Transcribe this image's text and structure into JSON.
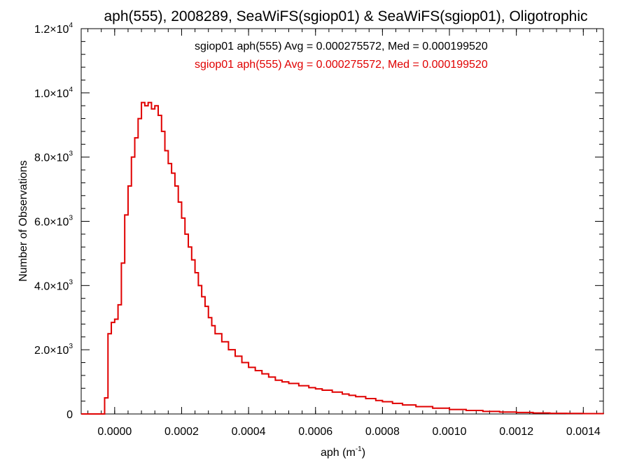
{
  "chart_data": {
    "type": "line",
    "title": "aph(555), 2008289, SeaWiFS(sgiop01) & SeaWiFS(sgiop01), Oligotrophic",
    "xlabel": "aph (m",
    "xlabel_sup": "-1",
    "xlabel_suffix": ")",
    "ylabel": "Number of Observations",
    "xlim": [
      -0.0001,
      0.00146
    ],
    "ylim": [
      0,
      12000
    ],
    "x_ticks": [
      0.0,
      0.0002,
      0.0004,
      0.0006,
      0.0008,
      0.001,
      0.0012,
      0.0014
    ],
    "x_tick_labels": [
      "0.0000",
      "0.0002",
      "0.0004",
      "0.0006",
      "0.0008",
      "0.0010",
      "0.0012",
      "0.0014"
    ],
    "y_ticks": [
      {
        "value": 0,
        "mantissa": "0",
        "exp": ""
      },
      {
        "value": 2000,
        "mantissa": "2.0×10",
        "exp": "3"
      },
      {
        "value": 4000,
        "mantissa": "4.0×10",
        "exp": "3"
      },
      {
        "value": 6000,
        "mantissa": "6.0×10",
        "exp": "3"
      },
      {
        "value": 8000,
        "mantissa": "8.0×10",
        "exp": "3"
      },
      {
        "value": 10000,
        "mantissa": "1.0×10",
        "exp": "4"
      },
      {
        "value": 12000,
        "mantissa": "1.2×10",
        "exp": "4"
      }
    ],
    "legend_entries": [
      {
        "text": "sgiop01 aph(555) Avg = 0.000275572, Med = 0.000199520",
        "color": "#000000"
      },
      {
        "text": "sgiop01 aph(555) Avg = 0.000275572, Med = 0.000199520",
        "color": "#e00000"
      }
    ],
    "series": [
      {
        "color": "#e00000",
        "x": [
          -0.0001,
          -4e-05,
          -3e-05,
          -2e-05,
          -1e-05,
          0.0,
          1e-05,
          2e-05,
          3e-05,
          4e-05,
          5e-05,
          6e-05,
          7e-05,
          8e-05,
          9e-05,
          0.0001,
          0.00011,
          0.00012,
          0.00013,
          0.00014,
          0.00015,
          0.00016,
          0.00017,
          0.00018,
          0.00019,
          0.0002,
          0.00021,
          0.00022,
          0.00023,
          0.00024,
          0.00025,
          0.00026,
          0.00027,
          0.00028,
          0.00029,
          0.0003,
          0.00032,
          0.00034,
          0.00036,
          0.00038,
          0.0004,
          0.00042,
          0.00044,
          0.00046,
          0.00048,
          0.0005,
          0.00052,
          0.00055,
          0.00058,
          0.0006,
          0.00062,
          0.00065,
          0.00068,
          0.0007,
          0.00072,
          0.00075,
          0.00078,
          0.0008,
          0.00083,
          0.00086,
          0.0009,
          0.00095,
          0.001,
          0.00105,
          0.0011,
          0.00115,
          0.0012,
          0.00125,
          0.0013,
          0.00135,
          0.0014,
          0.00146
        ],
        "y": [
          0,
          0,
          500,
          2500,
          2850,
          2950,
          3400,
          4700,
          6200,
          7100,
          8000,
          8600,
          9200,
          9700,
          9600,
          9700,
          9500,
          9600,
          9300,
          8800,
          8200,
          7800,
          7500,
          7100,
          6600,
          6100,
          5600,
          5200,
          4800,
          4400,
          4000,
          3650,
          3350,
          3000,
          2750,
          2500,
          2250,
          2000,
          1800,
          1600,
          1450,
          1350,
          1250,
          1150,
          1050,
          1000,
          950,
          880,
          820,
          780,
          740,
          680,
          620,
          580,
          540,
          480,
          420,
          380,
          330,
          280,
          230,
          180,
          140,
          110,
          80,
          60,
          45,
          30,
          20,
          15,
          10,
          5
        ]
      }
    ],
    "grid": false
  }
}
